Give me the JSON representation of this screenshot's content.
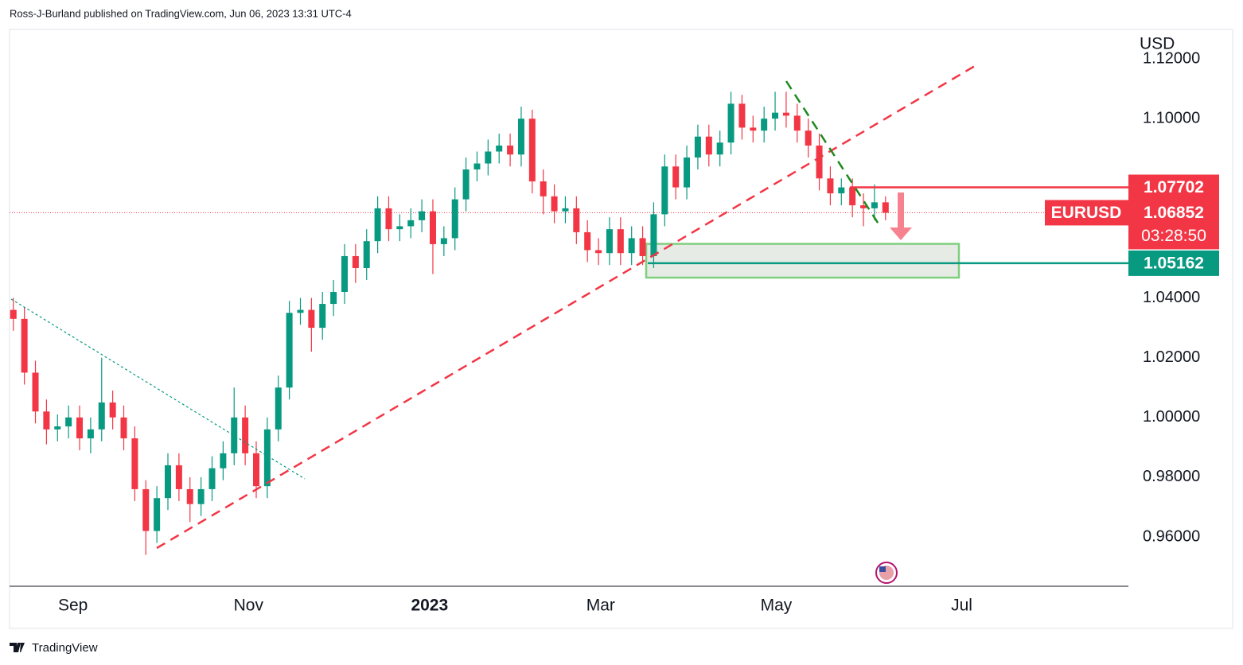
{
  "header": "Ross-J-Burland published on TradingView.com, Jun 06, 2023 13:31 UTC-4",
  "footer": "TradingView",
  "chart_data": {
    "type": "candlestick",
    "currency": "USD",
    "symbol": "EURUSD",
    "countdown": "03:28:50",
    "up_color": "#089981",
    "down_color": "#f23645",
    "open": [
      1.036,
      1.033,
      1.015,
      1.002,
      0.996,
      0.997,
      1.0,
      0.993,
      0.996,
      1.005,
      1.0,
      0.993,
      0.976,
      0.962,
      0.973,
      0.984,
      0.976,
      0.971,
      0.976,
      0.983,
      0.988,
      1.0,
      0.988,
      0.977,
      0.996,
      1.01,
      1.035,
      1.036,
      1.03,
      1.038,
      1.042,
      1.054,
      1.05,
      1.059,
      1.07,
      1.063,
      1.064,
      1.066,
      1.069,
      1.058,
      1.06,
      1.073,
      1.083,
      1.085,
      1.089,
      1.091,
      1.088,
      1.1,
      1.079,
      1.074,
      1.069,
      1.07,
      1.062,
      1.056,
      1.055,
      1.063,
      1.055,
      1.06,
      1.054,
      1.068,
      1.084,
      1.077,
      1.087,
      1.094,
      1.088,
      1.092,
      1.105,
      1.097,
      1.096,
      1.1,
      1.102,
      1.101,
      1.096,
      1.091,
      1.08,
      1.075,
      1.077,
      1.071,
      1.07,
      1.072
    ],
    "high": [
      1.04,
      1.037,
      1.019,
      1.006,
      1.001,
      1.004,
      1.004,
      1.0,
      1.02,
      1.009,
      1.004,
      0.997,
      0.979,
      0.977,
      0.988,
      0.988,
      0.98,
      0.98,
      0.987,
      0.992,
      1.01,
      1.004,
      0.992,
      1.0,
      1.014,
      1.039,
      1.04,
      1.04,
      1.042,
      1.046,
      1.058,
      1.058,
      1.063,
      1.074,
      1.074,
      1.068,
      1.07,
      1.073,
      1.073,
      1.064,
      1.077,
      1.087,
      1.089,
      1.093,
      1.095,
      1.095,
      1.104,
      1.103,
      1.083,
      1.078,
      1.074,
      1.074,
      1.066,
      1.06,
      1.067,
      1.067,
      1.064,
      1.064,
      1.072,
      1.088,
      1.088,
      1.091,
      1.098,
      1.098,
      1.096,
      1.109,
      1.108,
      1.101,
      1.104,
      1.109,
      1.109,
      1.105,
      1.1,
      1.095,
      1.084,
      1.08,
      1.08,
      1.075,
      1.078,
      1.074
    ],
    "low": [
      1.029,
      1.011,
      0.998,
      0.991,
      0.992,
      0.993,
      0.989,
      0.988,
      0.992,
      0.996,
      0.989,
      0.972,
      0.954,
      0.958,
      0.969,
      0.972,
      0.965,
      0.967,
      0.972,
      0.979,
      0.984,
      0.984,
      0.973,
      0.973,
      0.992,
      1.006,
      1.031,
      1.022,
      1.026,
      1.034,
      1.038,
      1.045,
      1.046,
      1.055,
      1.059,
      1.059,
      1.06,
      1.062,
      1.048,
      1.054,
      1.056,
      1.069,
      1.079,
      1.081,
      1.085,
      1.084,
      1.084,
      1.075,
      1.068,
      1.065,
      1.065,
      1.058,
      1.052,
      1.051,
      1.051,
      1.051,
      1.051,
      1.051,
      1.05,
      1.064,
      1.073,
      1.073,
      1.083,
      1.084,
      1.084,
      1.088,
      1.093,
      1.092,
      1.092,
      1.096,
      1.097,
      1.092,
      1.087,
      1.076,
      1.071,
      1.071,
      1.067,
      1.064,
      1.066,
      1.066
    ],
    "close": [
      1.033,
      1.015,
      1.002,
      0.996,
      0.997,
      1.0,
      0.993,
      0.996,
      1.005,
      1.0,
      0.993,
      0.976,
      0.962,
      0.973,
      0.984,
      0.976,
      0.971,
      0.976,
      0.983,
      0.988,
      1.0,
      0.988,
      0.977,
      0.996,
      1.01,
      1.035,
      1.036,
      1.03,
      1.038,
      1.042,
      1.054,
      1.05,
      1.059,
      1.07,
      1.063,
      1.064,
      1.066,
      1.069,
      1.058,
      1.06,
      1.073,
      1.083,
      1.085,
      1.089,
      1.091,
      1.088,
      1.1,
      1.079,
      1.074,
      1.069,
      1.07,
      1.062,
      1.056,
      1.055,
      1.063,
      1.055,
      1.06,
      1.054,
      1.068,
      1.084,
      1.077,
      1.087,
      1.094,
      1.088,
      1.092,
      1.105,
      1.097,
      1.096,
      1.1,
      1.102,
      1.101,
      1.096,
      1.091,
      1.08,
      1.075,
      1.077,
      1.071,
      1.07,
      1.072,
      1.0685
    ],
    "xlim": [
      -0.2,
      101
    ],
    "xticks": [
      {
        "value": 5.4,
        "label": "Sep"
      },
      {
        "value": 21.3,
        "label": "Nov"
      },
      {
        "value": 37.7,
        "label": "2023"
      },
      {
        "value": 53.2,
        "label": "Mar"
      },
      {
        "value": 69.1,
        "label": "May"
      },
      {
        "value": 85.9,
        "label": "Jul"
      }
    ],
    "ylim": [
      0.9435,
      1.1296
    ],
    "yticks": [
      {
        "value": 0.96,
        "label": "0.96000"
      },
      {
        "value": 0.98,
        "label": "0.98000"
      },
      {
        "value": 1.0,
        "label": "1.00000"
      },
      {
        "value": 1.02,
        "label": "1.02000"
      },
      {
        "value": 1.04,
        "label": "1.04000"
      },
      {
        "value": 1.1,
        "label": "1.10000"
      },
      {
        "value": 1.12,
        "label": "1.12000"
      }
    ],
    "levels": [
      {
        "value": 1.07702,
        "label": "1.07702",
        "color": "#f23645"
      },
      {
        "value": 1.05162,
        "label": "1.05162",
        "color": "#089981"
      }
    ],
    "last_price": {
      "value": 1.06852,
      "label": "1.06852"
    },
    "zone": [
      1.0468,
      1.0581
    ]
  }
}
